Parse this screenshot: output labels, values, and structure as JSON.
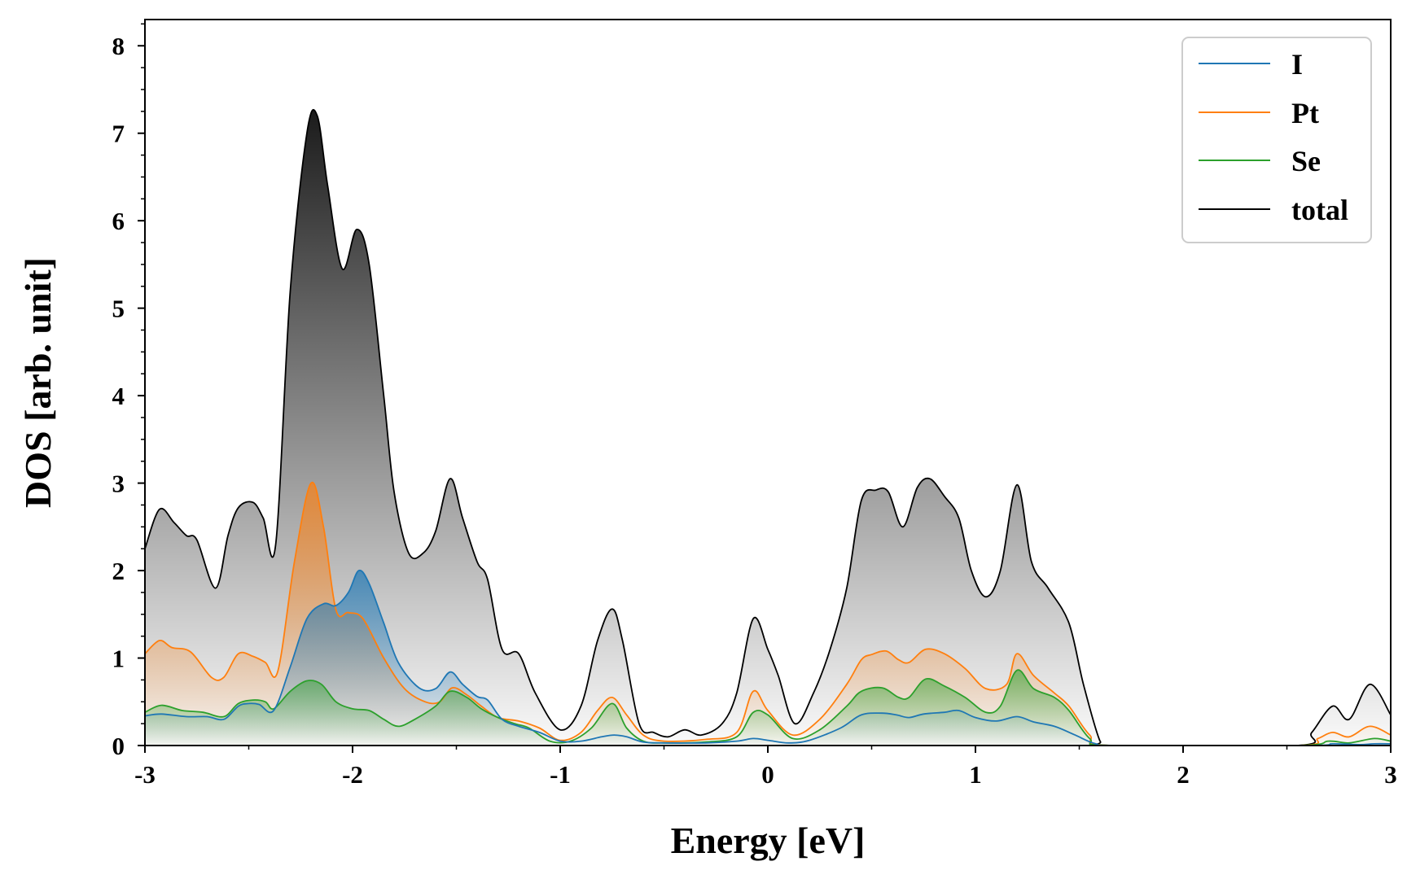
{
  "chart_data": {
    "type": "line",
    "title": "",
    "xlabel": "Energy [eV]",
    "ylabel": "DOS [arb. unit]",
    "xlim": [
      -3,
      3
    ],
    "ylim": [
      0,
      8.3
    ],
    "x_ticks": [
      -3,
      -2,
      -1,
      0,
      1,
      2,
      3
    ],
    "x_tick_labels": [
      "-3",
      "-2",
      "-1",
      "0",
      "1",
      "2",
      "3"
    ],
    "y_ticks": [
      0,
      1,
      2,
      3,
      4,
      5,
      6,
      7,
      8
    ],
    "y_tick_labels": [
      "0",
      "1",
      "2",
      "3",
      "4",
      "5",
      "6",
      "7",
      "8"
    ],
    "x_minor_step": 0.5,
    "y_minor_step": 0.25,
    "grid": false,
    "legend_position": "top-right",
    "series": [
      {
        "name": "I",
        "color": "#1f77b4",
        "points": [
          [
            -3.0,
            0.34
          ],
          [
            -2.92,
            0.36
          ],
          [
            -2.8,
            0.33
          ],
          [
            -2.7,
            0.33
          ],
          [
            -2.62,
            0.3
          ],
          [
            -2.55,
            0.45
          ],
          [
            -2.5,
            0.48
          ],
          [
            -2.45,
            0.47
          ],
          [
            -2.38,
            0.4
          ],
          [
            -2.3,
            0.9
          ],
          [
            -2.22,
            1.45
          ],
          [
            -2.14,
            1.62
          ],
          [
            -2.08,
            1.6
          ],
          [
            -2.02,
            1.75
          ],
          [
            -1.97,
            2.0
          ],
          [
            -1.92,
            1.85
          ],
          [
            -1.85,
            1.4
          ],
          [
            -1.78,
            0.95
          ],
          [
            -1.68,
            0.66
          ],
          [
            -1.6,
            0.65
          ],
          [
            -1.53,
            0.84
          ],
          [
            -1.47,
            0.7
          ],
          [
            -1.4,
            0.56
          ],
          [
            -1.35,
            0.52
          ],
          [
            -1.28,
            0.3
          ],
          [
            -1.2,
            0.22
          ],
          [
            -1.1,
            0.15
          ],
          [
            -1.0,
            0.05
          ],
          [
            -0.9,
            0.05
          ],
          [
            -0.8,
            0.1
          ],
          [
            -0.74,
            0.12
          ],
          [
            -0.68,
            0.1
          ],
          [
            -0.6,
            0.04
          ],
          [
            -0.5,
            0.03
          ],
          [
            -0.3,
            0.03
          ],
          [
            -0.15,
            0.05
          ],
          [
            -0.07,
            0.08
          ],
          [
            0.0,
            0.06
          ],
          [
            0.1,
            0.03
          ],
          [
            0.2,
            0.06
          ],
          [
            0.35,
            0.2
          ],
          [
            0.45,
            0.35
          ],
          [
            0.55,
            0.37
          ],
          [
            0.62,
            0.35
          ],
          [
            0.68,
            0.32
          ],
          [
            0.75,
            0.36
          ],
          [
            0.85,
            0.38
          ],
          [
            0.92,
            0.4
          ],
          [
            1.0,
            0.32
          ],
          [
            1.1,
            0.28
          ],
          [
            1.2,
            0.33
          ],
          [
            1.28,
            0.27
          ],
          [
            1.38,
            0.22
          ],
          [
            1.48,
            0.12
          ],
          [
            1.58,
            0.02
          ],
          [
            1.7,
            0.0
          ],
          [
            2.6,
            0.0
          ],
          [
            2.72,
            0.02
          ],
          [
            2.85,
            0.01
          ],
          [
            2.92,
            0.02
          ],
          [
            3.0,
            0.02
          ]
        ]
      },
      {
        "name": "Pt",
        "color": "#ff7f0e",
        "points": [
          [
            -3.0,
            1.05
          ],
          [
            -2.93,
            1.2
          ],
          [
            -2.87,
            1.12
          ],
          [
            -2.78,
            1.07
          ],
          [
            -2.68,
            0.78
          ],
          [
            -2.62,
            0.78
          ],
          [
            -2.55,
            1.05
          ],
          [
            -2.48,
            1.02
          ],
          [
            -2.42,
            0.95
          ],
          [
            -2.36,
            0.85
          ],
          [
            -2.28,
            2.1
          ],
          [
            -2.2,
            3.0
          ],
          [
            -2.14,
            2.5
          ],
          [
            -2.08,
            1.55
          ],
          [
            -2.02,
            1.52
          ],
          [
            -1.95,
            1.45
          ],
          [
            -1.85,
            1.0
          ],
          [
            -1.75,
            0.65
          ],
          [
            -1.65,
            0.5
          ],
          [
            -1.58,
            0.5
          ],
          [
            -1.52,
            0.66
          ],
          [
            -1.45,
            0.58
          ],
          [
            -1.38,
            0.45
          ],
          [
            -1.3,
            0.32
          ],
          [
            -1.2,
            0.28
          ],
          [
            -1.1,
            0.2
          ],
          [
            -1.0,
            0.06
          ],
          [
            -0.9,
            0.15
          ],
          [
            -0.82,
            0.4
          ],
          [
            -0.75,
            0.55
          ],
          [
            -0.68,
            0.35
          ],
          [
            -0.6,
            0.12
          ],
          [
            -0.5,
            0.05
          ],
          [
            -0.3,
            0.07
          ],
          [
            -0.15,
            0.15
          ],
          [
            -0.07,
            0.62
          ],
          [
            0.0,
            0.4
          ],
          [
            0.12,
            0.12
          ],
          [
            0.25,
            0.3
          ],
          [
            0.38,
            0.7
          ],
          [
            0.45,
            0.98
          ],
          [
            0.5,
            1.04
          ],
          [
            0.57,
            1.08
          ],
          [
            0.63,
            0.98
          ],
          [
            0.68,
            0.95
          ],
          [
            0.76,
            1.1
          ],
          [
            0.85,
            1.05
          ],
          [
            0.95,
            0.88
          ],
          [
            1.05,
            0.65
          ],
          [
            1.15,
            0.7
          ],
          [
            1.2,
            1.05
          ],
          [
            1.28,
            0.8
          ],
          [
            1.38,
            0.6
          ],
          [
            1.45,
            0.45
          ],
          [
            1.55,
            0.12
          ],
          [
            1.65,
            0.0
          ],
          [
            2.55,
            0.0
          ],
          [
            2.65,
            0.08
          ],
          [
            2.72,
            0.15
          ],
          [
            2.8,
            0.1
          ],
          [
            2.9,
            0.22
          ],
          [
            3.0,
            0.12
          ]
        ]
      },
      {
        "name": "Se",
        "color": "#2ca02c",
        "points": [
          [
            -3.0,
            0.38
          ],
          [
            -2.92,
            0.46
          ],
          [
            -2.82,
            0.4
          ],
          [
            -2.72,
            0.38
          ],
          [
            -2.62,
            0.33
          ],
          [
            -2.55,
            0.48
          ],
          [
            -2.48,
            0.52
          ],
          [
            -2.42,
            0.5
          ],
          [
            -2.38,
            0.42
          ],
          [
            -2.3,
            0.62
          ],
          [
            -2.22,
            0.74
          ],
          [
            -2.15,
            0.7
          ],
          [
            -2.08,
            0.5
          ],
          [
            -2.0,
            0.42
          ],
          [
            -1.92,
            0.4
          ],
          [
            -1.85,
            0.3
          ],
          [
            -1.78,
            0.22
          ],
          [
            -1.7,
            0.3
          ],
          [
            -1.6,
            0.45
          ],
          [
            -1.53,
            0.62
          ],
          [
            -1.45,
            0.55
          ],
          [
            -1.38,
            0.42
          ],
          [
            -1.3,
            0.32
          ],
          [
            -1.22,
            0.25
          ],
          [
            -1.15,
            0.2
          ],
          [
            -1.05,
            0.05
          ],
          [
            -0.95,
            0.05
          ],
          [
            -0.85,
            0.2
          ],
          [
            -0.75,
            0.48
          ],
          [
            -0.68,
            0.2
          ],
          [
            -0.6,
            0.05
          ],
          [
            -0.5,
            0.03
          ],
          [
            -0.3,
            0.04
          ],
          [
            -0.15,
            0.1
          ],
          [
            -0.07,
            0.38
          ],
          [
            0.0,
            0.35
          ],
          [
            0.12,
            0.08
          ],
          [
            0.25,
            0.18
          ],
          [
            0.38,
            0.45
          ],
          [
            0.45,
            0.62
          ],
          [
            0.55,
            0.66
          ],
          [
            0.63,
            0.55
          ],
          [
            0.68,
            0.55
          ],
          [
            0.76,
            0.76
          ],
          [
            0.85,
            0.68
          ],
          [
            0.95,
            0.55
          ],
          [
            1.05,
            0.38
          ],
          [
            1.12,
            0.45
          ],
          [
            1.2,
            0.86
          ],
          [
            1.28,
            0.65
          ],
          [
            1.38,
            0.55
          ],
          [
            1.45,
            0.4
          ],
          [
            1.55,
            0.08
          ],
          [
            1.65,
            0.0
          ],
          [
            2.55,
            0.0
          ],
          [
            2.7,
            0.05
          ],
          [
            2.8,
            0.03
          ],
          [
            2.92,
            0.08
          ],
          [
            3.0,
            0.05
          ]
        ]
      },
      {
        "name": "total",
        "color": "#000000",
        "points": [
          [
            -3.0,
            2.25
          ],
          [
            -2.93,
            2.7
          ],
          [
            -2.86,
            2.55
          ],
          [
            -2.8,
            2.4
          ],
          [
            -2.75,
            2.35
          ],
          [
            -2.66,
            1.8
          ],
          [
            -2.6,
            2.4
          ],
          [
            -2.55,
            2.72
          ],
          [
            -2.48,
            2.78
          ],
          [
            -2.43,
            2.6
          ],
          [
            -2.37,
            2.3
          ],
          [
            -2.3,
            5.2
          ],
          [
            -2.22,
            7.0
          ],
          [
            -2.17,
            7.2
          ],
          [
            -2.12,
            6.4
          ],
          [
            -2.05,
            5.45
          ],
          [
            -1.98,
            5.9
          ],
          [
            -1.92,
            5.5
          ],
          [
            -1.85,
            4.0
          ],
          [
            -1.8,
            2.9
          ],
          [
            -1.73,
            2.2
          ],
          [
            -1.66,
            2.2
          ],
          [
            -1.6,
            2.45
          ],
          [
            -1.53,
            3.05
          ],
          [
            -1.47,
            2.6
          ],
          [
            -1.4,
            2.1
          ],
          [
            -1.35,
            1.9
          ],
          [
            -1.28,
            1.1
          ],
          [
            -1.2,
            1.05
          ],
          [
            -1.12,
            0.6
          ],
          [
            -1.0,
            0.18
          ],
          [
            -0.9,
            0.45
          ],
          [
            -0.82,
            1.2
          ],
          [
            -0.75,
            1.56
          ],
          [
            -0.7,
            1.2
          ],
          [
            -0.62,
            0.25
          ],
          [
            -0.55,
            0.15
          ],
          [
            -0.48,
            0.1
          ],
          [
            -0.4,
            0.18
          ],
          [
            -0.32,
            0.12
          ],
          [
            -0.22,
            0.25
          ],
          [
            -0.15,
            0.6
          ],
          [
            -0.07,
            1.45
          ],
          [
            0.0,
            1.1
          ],
          [
            0.05,
            0.8
          ],
          [
            0.13,
            0.25
          ],
          [
            0.22,
            0.6
          ],
          [
            0.3,
            1.1
          ],
          [
            0.38,
            1.8
          ],
          [
            0.45,
            2.8
          ],
          [
            0.52,
            2.92
          ],
          [
            0.58,
            2.9
          ],
          [
            0.65,
            2.5
          ],
          [
            0.72,
            2.95
          ],
          [
            0.78,
            3.05
          ],
          [
            0.85,
            2.85
          ],
          [
            0.92,
            2.6
          ],
          [
            0.98,
            2.0
          ],
          [
            1.05,
            1.7
          ],
          [
            1.12,
            2.0
          ],
          [
            1.2,
            2.98
          ],
          [
            1.27,
            2.1
          ],
          [
            1.35,
            1.8
          ],
          [
            1.45,
            1.4
          ],
          [
            1.52,
            0.7
          ],
          [
            1.6,
            0.05
          ],
          [
            1.65,
            0.0
          ],
          [
            2.55,
            0.0
          ],
          [
            2.62,
            0.15
          ],
          [
            2.72,
            0.45
          ],
          [
            2.8,
            0.3
          ],
          [
            2.9,
            0.7
          ],
          [
            3.0,
            0.35
          ]
        ]
      }
    ]
  }
}
